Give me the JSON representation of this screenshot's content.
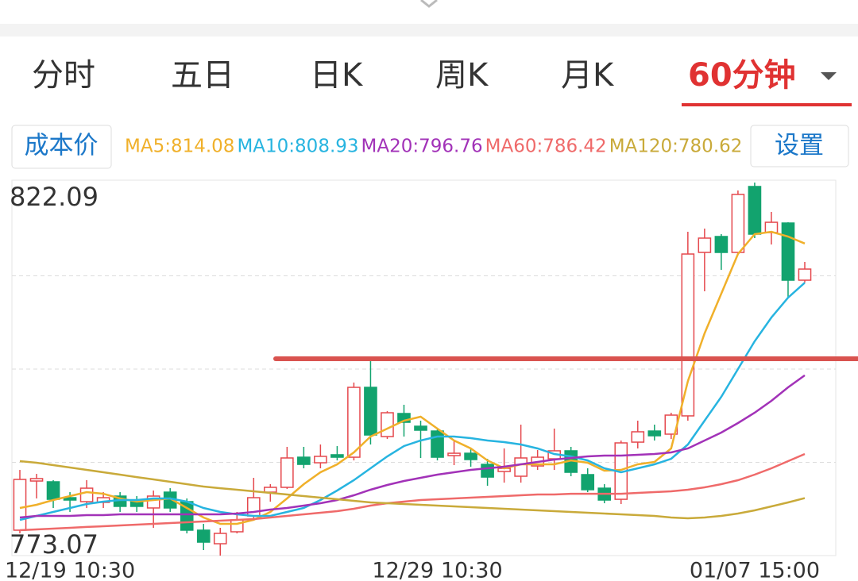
{
  "tabs": [
    "分时",
    "五日",
    "日K",
    "周K",
    "月K",
    "60分钟"
  ],
  "active_tab": 5,
  "buttons": {
    "cost": "成本价",
    "settings": "设置"
  },
  "chart_data": {
    "type": "candlestick",
    "categories": [
      null,
      null,
      null,
      "12/19 10:30",
      null,
      null,
      null,
      null,
      null,
      null,
      null,
      null,
      null,
      null,
      null,
      null,
      null,
      null,
      null,
      null,
      null,
      null,
      null,
      null,
      null,
      "12/29 10:30",
      null,
      null,
      null,
      null,
      null,
      null,
      null,
      null,
      null,
      null,
      null,
      null,
      null,
      null,
      null,
      null,
      null,
      null,
      "01/07 15:00",
      null,
      null,
      null
    ],
    "open": [
      776.41,
      782.87,
      782.77,
      780.68,
      780.16,
      780.06,
      780.89,
      780.16,
      779.33,
      781.41,
      780.16,
      776.41,
      774.63,
      776.2,
      778.28,
      781.41,
      782.04,
      786.0,
      785.27,
      786.32,
      786.0,
      795.18,
      788.71,
      791.74,
      790.07,
      789.44,
      786.21,
      786.52,
      785.06,
      784.12,
      783.5,
      784.85,
      785.79,
      786.84,
      783.71,
      781.93,
      780.47,
      787.98,
      789.44,
      789.03,
      791.43,
      812.91,
      815.0,
      812.91,
      821.57,
      815.52,
      816.77,
      809.26
    ],
    "close": [
      783.08,
      783.19,
      780.47,
      780.37,
      781.93,
      780.68,
      779.54,
      779.54,
      780.89,
      779.33,
      776.41,
      774.84,
      775.99,
      777.76,
      780.68,
      782.04,
      785.9,
      785.06,
      786.11,
      786.0,
      795.18,
      788.92,
      791.84,
      790.59,
      789.55,
      786.0,
      786.52,
      785.69,
      783.39,
      784.54,
      785.9,
      786.0,
      786.84,
      784.02,
      781.73,
      780.37,
      787.88,
      789.34,
      788.82,
      791.53,
      812.7,
      814.79,
      812.91,
      820.53,
      815.31,
      816.87,
      809.26,
      810.72
    ],
    "high": [
      784.33,
      783.81,
      782.98,
      781.41,
      782.98,
      781.41,
      781.41,
      780.89,
      781.62,
      781.93,
      780.58,
      777.24,
      776.72,
      778.81,
      783.29,
      782.46,
      787.36,
      787.36,
      787.67,
      787.46,
      795.81,
      798.62,
      792.05,
      792.89,
      790.8,
      789.76,
      788.19,
      787.15,
      785.79,
      787.15,
      790.28,
      786.94,
      789.76,
      787.36,
      784.54,
      782.46,
      788.19,
      790.8,
      790.28,
      791.84,
      815.62,
      816.04,
      815.31,
      821.05,
      822.09,
      818.23,
      816.87,
      811.66
    ],
    "low": [
      775.99,
      780.58,
      779.33,
      778.81,
      779.33,
      779.33,
      778.81,
      778.81,
      776.72,
      778.81,
      775.99,
      773.8,
      773.07,
      775.99,
      777.76,
      780.16,
      781.83,
      784.54,
      784.54,
      785.58,
      785.58,
      787.67,
      788.4,
      788.71,
      785.9,
      785.58,
      784.96,
      784.75,
      782.25,
      782.66,
      782.66,
      784.33,
      784.33,
      783.5,
      781.41,
      779.95,
      779.85,
      787.15,
      788.19,
      788.4,
      790.8,
      807.8,
      810.62,
      812.7,
      814.79,
      813.95,
      806.97,
      808.95
    ],
    "up_color": "#e5484d",
    "down_color": "#12a36e",
    "series": [
      {
        "name": "MA5:814.08",
        "color": "#f0b02a",
        "values": [
          779.33,
          779.74,
          780.37,
          780.89,
          781.41,
          781.2,
          780.58,
          780.16,
          780.37,
          780.58,
          779.33,
          778.08,
          777.24,
          777.24,
          777.76,
          778.81,
          780.58,
          782.46,
          784.02,
          785.06,
          786.63,
          788.71,
          789.76,
          790.8,
          791.32,
          789.76,
          788.19,
          787.15,
          785.58,
          784.54,
          785.06,
          785.06,
          785.06,
          785.58,
          785.27,
          784.23,
          784.33,
          785.06,
          785.38,
          787.15,
          796.01,
          802.27,
          807.49,
          812.7,
          815.31,
          815.62,
          815.0,
          814.08
        ]
      },
      {
        "name": "MA10:808.93",
        "color": "#27b4e0",
        "values": [
          777.76,
          778.28,
          778.81,
          779.33,
          779.85,
          780.16,
          780.37,
          780.37,
          780.58,
          780.58,
          780.16,
          779.33,
          778.81,
          778.49,
          778.28,
          778.28,
          778.81,
          779.33,
          780.37,
          781.62,
          782.98,
          784.54,
          786.11,
          787.46,
          788.19,
          788.71,
          788.71,
          788.51,
          788.19,
          787.98,
          787.67,
          787.15,
          786.42,
          786.11,
          785.58,
          784.54,
          784.02,
          784.54,
          785.06,
          785.79,
          787.67,
          790.8,
          793.93,
          797.58,
          801.23,
          804.36,
          806.97,
          808.93
        ]
      },
      {
        "name": "MA20:796.76",
        "color": "#a232b8",
        "values": [
          778.08,
          778.28,
          778.28,
          778.28,
          778.39,
          778.39,
          778.49,
          778.49,
          778.49,
          778.49,
          778.49,
          778.49,
          778.49,
          778.6,
          778.81,
          779.12,
          779.33,
          779.64,
          779.95,
          780.37,
          781.0,
          781.73,
          782.35,
          782.87,
          783.29,
          783.71,
          784.02,
          784.33,
          784.54,
          784.75,
          785.06,
          785.38,
          785.69,
          785.9,
          786.11,
          786.21,
          786.21,
          786.32,
          786.42,
          786.63,
          787.15,
          788.19,
          789.24,
          790.49,
          791.84,
          793.41,
          795.18,
          796.76
        ]
      },
      {
        "name": "MA60:786.42",
        "color": "#ef6a6a",
        "values": [
          776.41,
          776.51,
          776.62,
          776.72,
          776.83,
          776.93,
          777.03,
          777.14,
          777.24,
          777.35,
          777.45,
          777.55,
          777.66,
          777.76,
          777.87,
          778.08,
          778.28,
          778.49,
          778.7,
          778.91,
          779.22,
          779.64,
          779.95,
          780.16,
          780.37,
          780.47,
          780.58,
          780.68,
          780.79,
          780.89,
          781.0,
          781.1,
          781.1,
          781.2,
          781.2,
          781.2,
          781.2,
          781.31,
          781.41,
          781.52,
          781.73,
          782.04,
          782.46,
          782.98,
          783.71,
          784.54,
          785.48,
          786.42
        ]
      },
      {
        "name": "MA120:780.62",
        "color": "#c9aa3a",
        "values": [
          785.48,
          785.27,
          784.96,
          784.65,
          784.33,
          784.02,
          783.71,
          783.39,
          783.08,
          782.77,
          782.46,
          782.14,
          781.93,
          781.73,
          781.52,
          781.31,
          781.1,
          780.89,
          780.68,
          780.47,
          780.27,
          780.06,
          779.95,
          779.85,
          779.74,
          779.64,
          779.54,
          779.43,
          779.33,
          779.22,
          779.12,
          779.01,
          778.91,
          778.81,
          778.7,
          778.6,
          778.49,
          778.39,
          778.28,
          778.08,
          777.97,
          778.08,
          778.28,
          778.6,
          779.01,
          779.54,
          780.06,
          780.62
        ]
      }
    ],
    "ylim": [
      773.07,
      822.09
    ],
    "grid": true,
    "annotation_line": {
      "value": 798.93,
      "color": "#d9534f"
    }
  }
}
